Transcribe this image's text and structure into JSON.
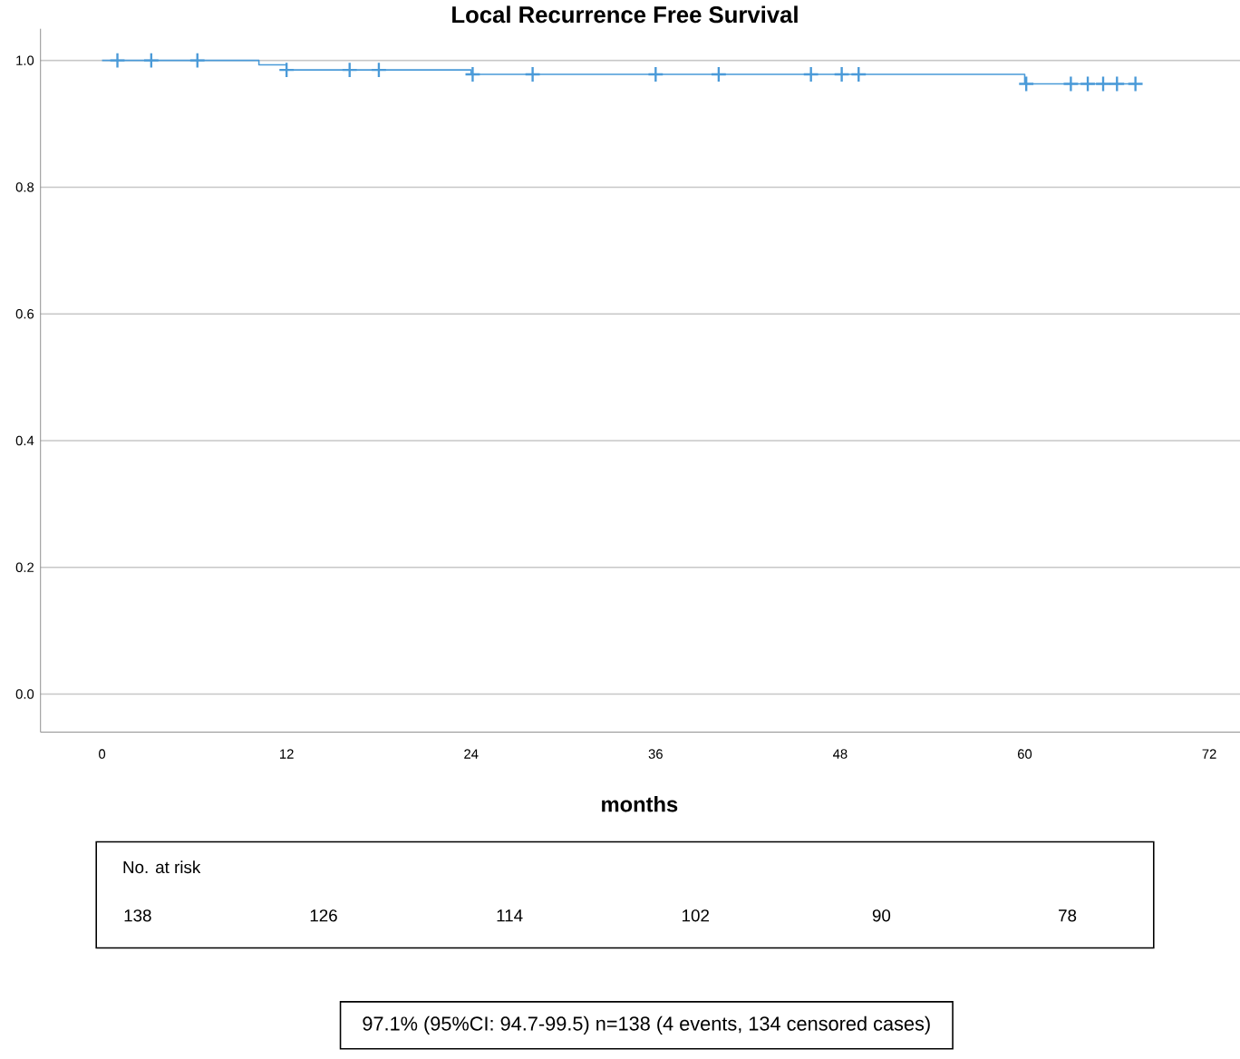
{
  "chart_data": {
    "type": "step",
    "title": "Local Recurrence Free Survival",
    "xlabel": "months",
    "xlim": [
      -4,
      74
    ],
    "ylim": [
      -0.06,
      1.05
    ],
    "xticks": [
      0,
      12,
      24,
      36,
      48,
      60,
      72
    ],
    "yticks": [
      {
        "value": 0,
        "label": "0.0"
      },
      {
        "value": 0.2,
        "label": "0.2"
      },
      {
        "value": 0.4,
        "label": "0.4"
      },
      {
        "value": 0.6,
        "label": "0.6"
      },
      {
        "value": 0.8,
        "label": "0.8"
      },
      {
        "value": 1,
        "label": "1.0"
      }
    ],
    "grid": "y",
    "series": [
      {
        "color": "#4a9ad8",
        "marker": "none",
        "line_style": "solid",
        "x": [
          0,
          10.2,
          12,
          24,
          60,
          67.2
        ],
        "values": [
          1,
          0.993,
          0.985,
          0.978,
          0.963,
          0.963
        ]
      },
      {
        "type": "scatter",
        "color": "#4a9ad8",
        "marker": "cross",
        "x": [
          1,
          3.2,
          6.2,
          12,
          16.1,
          18,
          24.1,
          28,
          36,
          40.1,
          46.1,
          48.1,
          49.2,
          60.1,
          63,
          64.1,
          65.1,
          66,
          67.2
        ],
        "values": [
          1,
          1,
          1,
          0.985,
          0.985,
          0.985,
          0.978,
          0.978,
          0.978,
          0.978,
          0.978,
          0.978,
          0.978,
          0.963,
          0.963,
          0.963,
          0.963,
          0.963,
          0.963
        ]
      }
    ],
    "annotations": [
      "No. at risk",
      "138",
      "126",
      "114",
      "102",
      "90",
      "78",
      "97.1% (95%CI: 94.7-99.5) n=138 (4 events, 134 censored cases)"
    ]
  }
}
